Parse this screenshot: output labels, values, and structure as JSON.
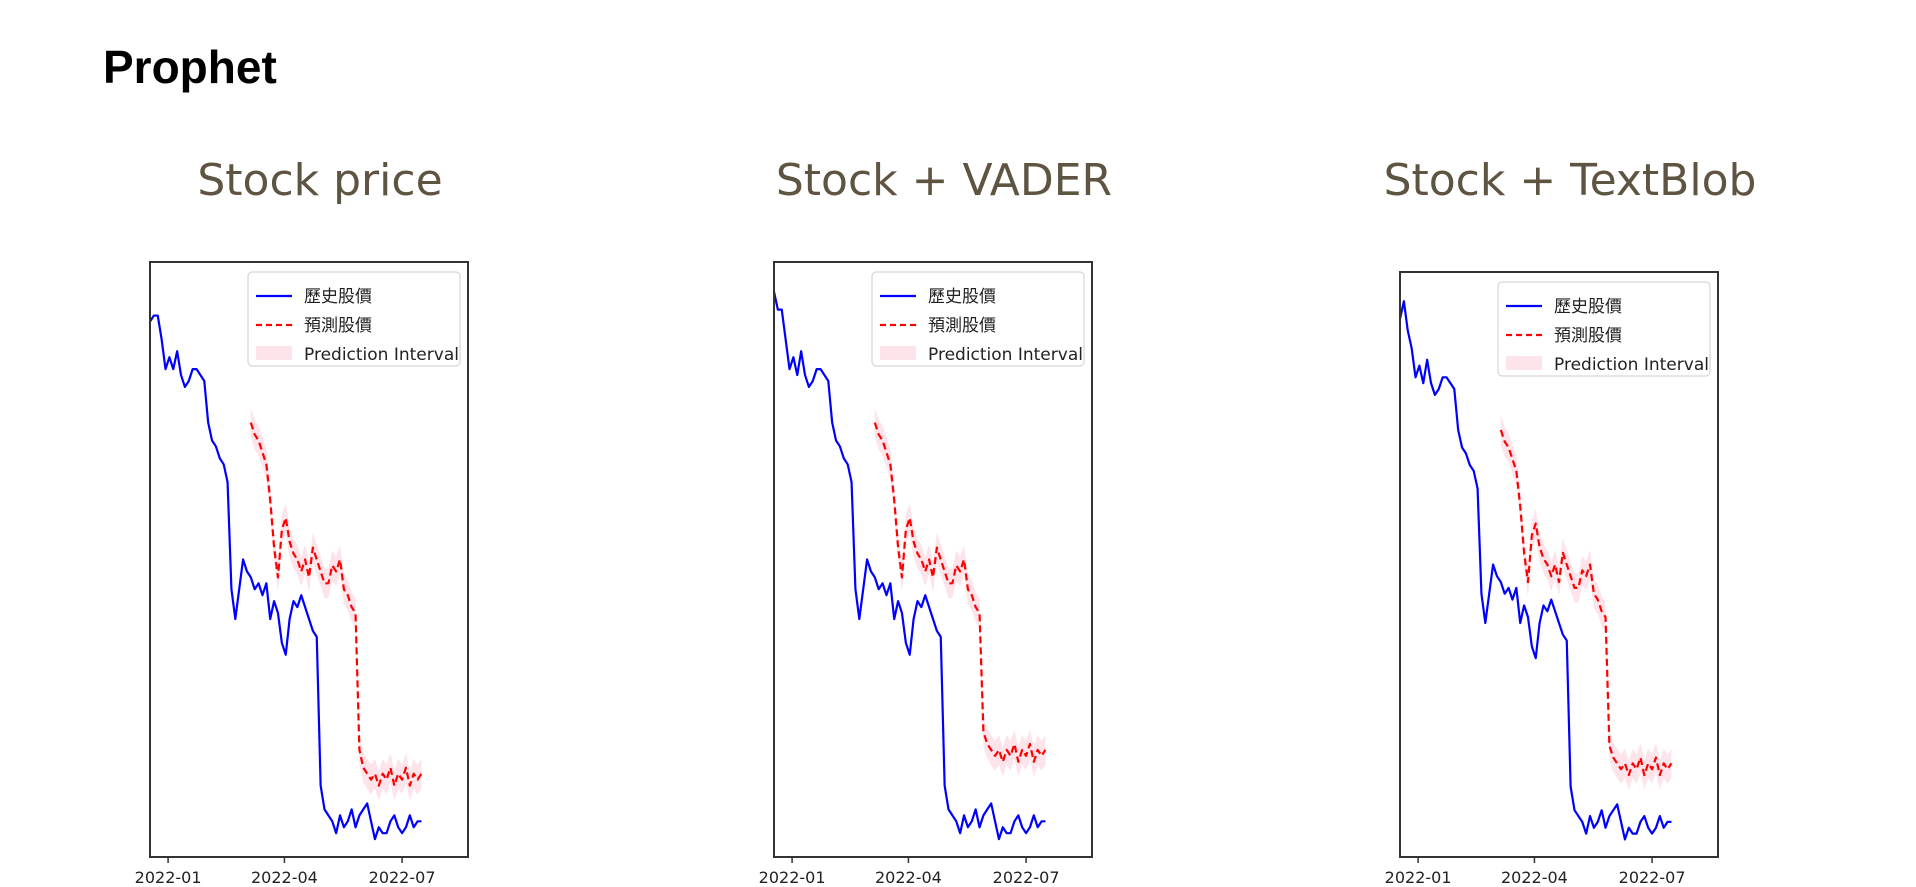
{
  "page": {
    "title": "Prophet"
  },
  "colors": {
    "history": "#0000ff",
    "forecast": "#ff0000",
    "interval": "#fde4ea",
    "panel_title": "#5e5442"
  },
  "chart_data": [
    {
      "type": "line",
      "title": "Stock price",
      "legend": {
        "position": "top-right",
        "entries": [
          "歷史股價",
          "預測股價",
          "Prediction Interval"
        ]
      },
      "xticks": [
        "2022-01",
        "2022-04",
        "2022-07"
      ],
      "xrange": [
        -14,
        232
      ],
      "yrange": [
        0,
        100
      ],
      "grid": false,
      "series": [
        {
          "key": "history",
          "x": [
            -14,
            -11,
            -8,
            -5,
            -2,
            1,
            4,
            7,
            10,
            13,
            16,
            19,
            22,
            25,
            28,
            31,
            34,
            37,
            40,
            43,
            46,
            49,
            52,
            55,
            58,
            61,
            64,
            67,
            70,
            73,
            76,
            79,
            82,
            85,
            88,
            91,
            94,
            97,
            100,
            103,
            106,
            109,
            112,
            115,
            118,
            121,
            124,
            127,
            130,
            133,
            136,
            139,
            142,
            145,
            148,
            151,
            154,
            157,
            160,
            163,
            166,
            169,
            172,
            175,
            178,
            181,
            184,
            187,
            190,
            193,
            196
          ],
          "y": [
            90,
            91,
            91,
            87,
            82,
            84,
            82,
            85,
            81,
            79,
            80,
            82,
            82,
            81,
            80,
            73,
            70,
            69,
            67,
            66,
            63,
            45,
            40,
            45,
            50,
            48,
            47,
            45,
            46,
            44,
            46,
            40,
            43,
            41,
            36,
            34,
            40,
            43,
            42,
            44,
            42,
            40,
            38,
            37,
            12,
            8,
            7,
            6,
            4,
            7,
            5,
            6,
            8,
            5,
            7,
            8,
            9,
            6,
            3,
            5,
            4,
            4,
            6,
            7,
            5,
            4,
            5,
            7,
            5,
            6,
            6
          ]
        },
        {
          "key": "forecast",
          "x": [
            64,
            67,
            70,
            73,
            76,
            79,
            82,
            85,
            88,
            91,
            94,
            97,
            100,
            103,
            106,
            109,
            112,
            115,
            118,
            121,
            124,
            127,
            130,
            133,
            136,
            139,
            142,
            145,
            148,
            151,
            154,
            157,
            160,
            163,
            166,
            169,
            172,
            175,
            178,
            181,
            184,
            187,
            190,
            193,
            196
          ],
          "y": [
            73,
            71,
            70,
            68,
            66,
            60,
            52,
            47,
            55,
            57,
            53,
            51,
            50,
            48,
            50,
            47,
            52,
            50,
            48,
            46,
            46,
            49,
            48,
            50,
            45,
            44,
            42,
            41,
            18,
            15,
            14,
            13,
            14,
            12,
            14,
            13,
            15,
            12,
            14,
            13,
            15,
            12,
            14,
            13,
            14
          ]
        }
      ]
    },
    {
      "type": "line",
      "title": "Stock + VADER",
      "legend": {
        "position": "top-right",
        "entries": [
          "歷史股價",
          "預測股價",
          "Prediction Interval"
        ]
      },
      "xticks": [
        "2022-01",
        "2022-04",
        "2022-07"
      ],
      "xrange": [
        -14,
        232
      ],
      "yrange": [
        0,
        100
      ],
      "grid": false,
      "series": [
        {
          "key": "history",
          "x": [
            -14,
            -11,
            -8,
            -5,
            -2,
            1,
            4,
            7,
            10,
            13,
            16,
            19,
            22,
            25,
            28,
            31,
            34,
            37,
            40,
            43,
            46,
            49,
            52,
            55,
            58,
            61,
            64,
            67,
            70,
            73,
            76,
            79,
            82,
            85,
            88,
            91,
            94,
            97,
            100,
            103,
            106,
            109,
            112,
            115,
            118,
            121,
            124,
            127,
            130,
            133,
            136,
            139,
            142,
            145,
            148,
            151,
            154,
            157,
            160,
            163,
            166,
            169,
            172,
            175,
            178,
            181,
            184,
            187,
            190,
            193,
            196
          ],
          "y": [
            95,
            92,
            92,
            87,
            82,
            84,
            81,
            85,
            81,
            79,
            80,
            82,
            82,
            81,
            80,
            73,
            70,
            69,
            67,
            66,
            63,
            45,
            40,
            45,
            50,
            48,
            47,
            45,
            46,
            44,
            46,
            40,
            43,
            41,
            36,
            34,
            40,
            43,
            42,
            44,
            42,
            40,
            38,
            37,
            12,
            8,
            7,
            6,
            4,
            7,
            5,
            6,
            8,
            5,
            7,
            8,
            9,
            6,
            3,
            5,
            4,
            4,
            6,
            7,
            5,
            4,
            5,
            7,
            5,
            6,
            6
          ]
        },
        {
          "key": "forecast",
          "x": [
            64,
            67,
            70,
            73,
            76,
            79,
            82,
            85,
            88,
            91,
            94,
            97,
            100,
            103,
            106,
            109,
            112,
            115,
            118,
            121,
            124,
            127,
            130,
            133,
            136,
            139,
            142,
            145,
            148,
            151,
            154,
            157,
            160,
            163,
            166,
            169,
            172,
            175,
            178,
            181,
            184,
            187,
            190,
            193,
            196
          ],
          "y": [
            73,
            71,
            70,
            68,
            66,
            60,
            52,
            47,
            55,
            57,
            53,
            51,
            50,
            48,
            50,
            47,
            52,
            50,
            48,
            46,
            46,
            49,
            48,
            50,
            45,
            44,
            42,
            41,
            21,
            19,
            18,
            17,
            18,
            16,
            18,
            17,
            19,
            16,
            18,
            17,
            19,
            16,
            18,
            17,
            18
          ]
        }
      ]
    },
    {
      "type": "line",
      "title": "Stock + TextBlob",
      "legend": {
        "position": "top-right",
        "entries": [
          "歷史股價",
          "預測股價",
          "Prediction Interval"
        ]
      },
      "xticks": [
        "2022-01",
        "2022-04",
        "2022-07"
      ],
      "xrange": [
        -14,
        232
      ],
      "yrange": [
        0,
        100
      ],
      "grid": false,
      "series": [
        {
          "key": "history",
          "x": [
            -14,
            -11,
            -8,
            -5,
            -2,
            1,
            4,
            7,
            10,
            13,
            16,
            19,
            22,
            25,
            28,
            31,
            34,
            37,
            40,
            43,
            46,
            49,
            52,
            55,
            58,
            61,
            64,
            67,
            70,
            73,
            76,
            79,
            82,
            85,
            88,
            91,
            94,
            97,
            100,
            103,
            106,
            109,
            112,
            115,
            118,
            121,
            124,
            127,
            130,
            133,
            136,
            139,
            142,
            145,
            148,
            151,
            154,
            157,
            160,
            163,
            166,
            169,
            172,
            175,
            178,
            181,
            184,
            187,
            190,
            193,
            196
          ],
          "y": [
            92,
            95,
            90,
            87,
            82,
            84,
            81,
            85,
            81,
            79,
            80,
            82,
            82,
            81,
            80,
            73,
            70,
            69,
            67,
            66,
            63,
            45,
            40,
            45,
            50,
            48,
            47,
            45,
            46,
            44,
            46,
            40,
            43,
            41,
            36,
            34,
            40,
            43,
            42,
            44,
            42,
            40,
            38,
            37,
            12,
            8,
            7,
            6,
            4,
            7,
            5,
            6,
            8,
            5,
            7,
            8,
            9,
            6,
            3,
            5,
            4,
            4,
            6,
            7,
            5,
            4,
            5,
            7,
            5,
            6,
            6
          ]
        },
        {
          "key": "forecast",
          "x": [
            64,
            67,
            70,
            73,
            76,
            79,
            82,
            85,
            88,
            91,
            94,
            97,
            100,
            103,
            106,
            109,
            112,
            115,
            118,
            121,
            124,
            127,
            130,
            133,
            136,
            139,
            142,
            145,
            148,
            151,
            154,
            157,
            160,
            163,
            166,
            169,
            172,
            175,
            178,
            181,
            184,
            187,
            190,
            193,
            196
          ],
          "y": [
            73,
            71,
            70,
            68,
            66,
            60,
            52,
            47,
            55,
            57,
            53,
            51,
            50,
            48,
            50,
            47,
            52,
            50,
            48,
            46,
            46,
            49,
            48,
            50,
            45,
            44,
            42,
            41,
            19,
            17,
            16,
            15,
            16,
            14,
            16,
            15,
            17,
            14,
            16,
            15,
            17,
            14,
            16,
            15,
            16
          ]
        }
      ]
    }
  ]
}
